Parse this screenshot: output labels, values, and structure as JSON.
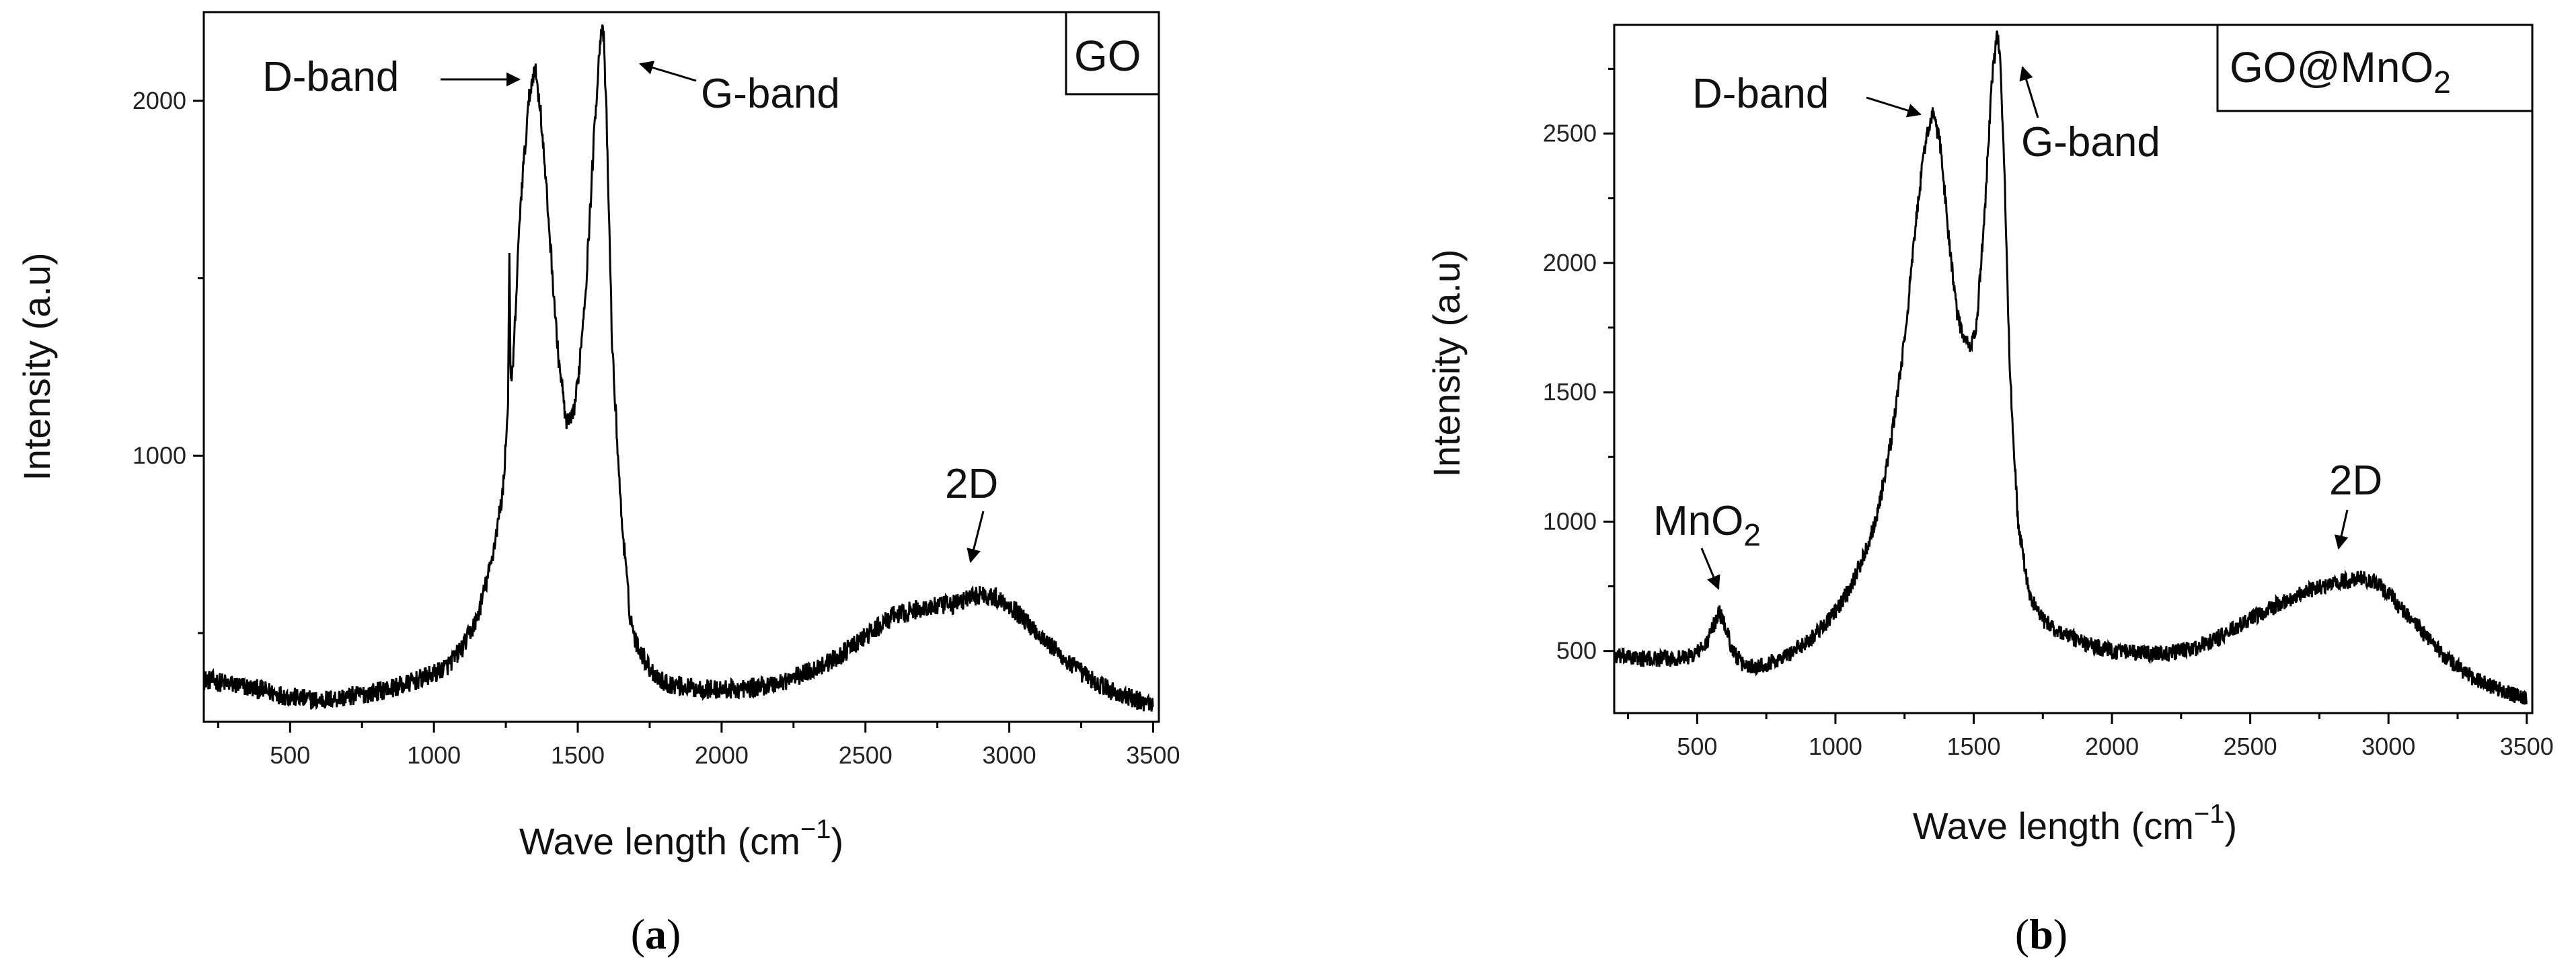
{
  "chart_data": [
    {
      "type": "line",
      "panel": "(a)",
      "legend": "GO",
      "legend_position": "top-right",
      "xlabel": "Wave length (cm",
      "xlabel_sup": "−1",
      "xlabel_close": ")",
      "ylabel": "Intensity (a.u)",
      "xlim": [
        200,
        3520
      ],
      "ylim": [
        250,
        2250
      ],
      "xticks": [
        500,
        1000,
        1500,
        2000,
        2500,
        3000,
        3500
      ],
      "yticks": [
        1000,
        2000
      ],
      "series": [
        {
          "name": "GO",
          "x": [
            200,
            300,
            400,
            500,
            600,
            700,
            800,
            900,
            1000,
            1050,
            1100,
            1150,
            1200,
            1240,
            1258,
            1262,
            1266,
            1275,
            1300,
            1330,
            1350,
            1370,
            1400,
            1430,
            1460,
            1480,
            1500,
            1530,
            1560,
            1580,
            1590,
            1600,
            1620,
            1650,
            1680,
            1700,
            1750,
            1800,
            1900,
            2000,
            2100,
            2200,
            2300,
            2400,
            2500,
            2600,
            2700,
            2800,
            2900,
            2950,
            3000,
            3100,
            3200,
            3300,
            3400,
            3500
          ],
          "values": [
            370,
            355,
            340,
            320,
            310,
            320,
            335,
            355,
            385,
            410,
            460,
            540,
            700,
            900,
            1150,
            1620,
            1200,
            1250,
            1700,
            2000,
            2100,
            1980,
            1650,
            1300,
            1090,
            1100,
            1200,
            1500,
            1950,
            2200,
            2180,
            1950,
            1300,
            850,
            560,
            480,
            400,
            360,
            345,
            340,
            345,
            360,
            390,
            430,
            490,
            550,
            570,
            580,
            610,
            600,
            580,
            500,
            420,
            360,
            320,
            300
          ],
          "noise": 28
        }
      ],
      "annotations": [
        {
          "text": "D-band",
          "x": 1350,
          "y": 2100
        },
        {
          "text": "G-band",
          "x": 1590,
          "y": 2200
        },
        {
          "text": "2D",
          "x": 2880,
          "y": 620
        }
      ]
    },
    {
      "type": "line",
      "panel": "(b)",
      "legend": "GO@MnO",
      "legend_sub": "2",
      "legend_position": "top-right",
      "xlabel": "Wave length (cm",
      "xlabel_sup": "−1",
      "xlabel_close": ")",
      "ylabel": "Intensity (a.u)",
      "xlim": [
        200,
        3520
      ],
      "ylim": [
        260,
        2920
      ],
      "xticks": [
        500,
        1000,
        1500,
        2000,
        2500,
        3000,
        3500
      ],
      "yticks": [
        500,
        1000,
        1500,
        2000,
        2500
      ],
      "series": [
        {
          "name": "GO@MnO2",
          "x": [
            200,
            300,
            400,
            480,
            530,
            560,
            580,
            600,
            630,
            660,
            700,
            750,
            800,
            850,
            900,
            950,
            1000,
            1050,
            1100,
            1150,
            1200,
            1250,
            1300,
            1330,
            1355,
            1380,
            1410,
            1440,
            1470,
            1490,
            1510,
            1540,
            1565,
            1585,
            1595,
            1610,
            1630,
            1660,
            1700,
            1750,
            1800,
            1900,
            2000,
            2100,
            2200,
            2300,
            2400,
            2500,
            2600,
            2700,
            2800,
            2900,
            2950,
            3000,
            3100,
            3200,
            3300,
            3400,
            3500
          ],
          "values": [
            480,
            470,
            470,
            480,
            520,
            600,
            650,
            600,
            500,
            450,
            440,
            450,
            470,
            500,
            540,
            590,
            650,
            740,
            860,
            1020,
            1300,
            1700,
            2250,
            2500,
            2580,
            2450,
            2100,
            1800,
            1690,
            1680,
            1750,
            2200,
            2700,
            2880,
            2820,
            2400,
            1600,
            1000,
            720,
            620,
            580,
            530,
            500,
            490,
            490,
            510,
            560,
            620,
            680,
            730,
            760,
            780,
            770,
            720,
            600,
            480,
            400,
            350,
            310
          ],
          "noise": 32
        }
      ],
      "annotations": [
        {
          "text": "D-band",
          "x": 1355,
          "y": 2580
        },
        {
          "text": "G-band",
          "x": 1590,
          "y": 2880
        },
        {
          "text": "2D",
          "x": 2820,
          "y": 800
        },
        {
          "text": "MnO",
          "sub": "2",
          "x": 580,
          "y": 650
        }
      ]
    }
  ]
}
